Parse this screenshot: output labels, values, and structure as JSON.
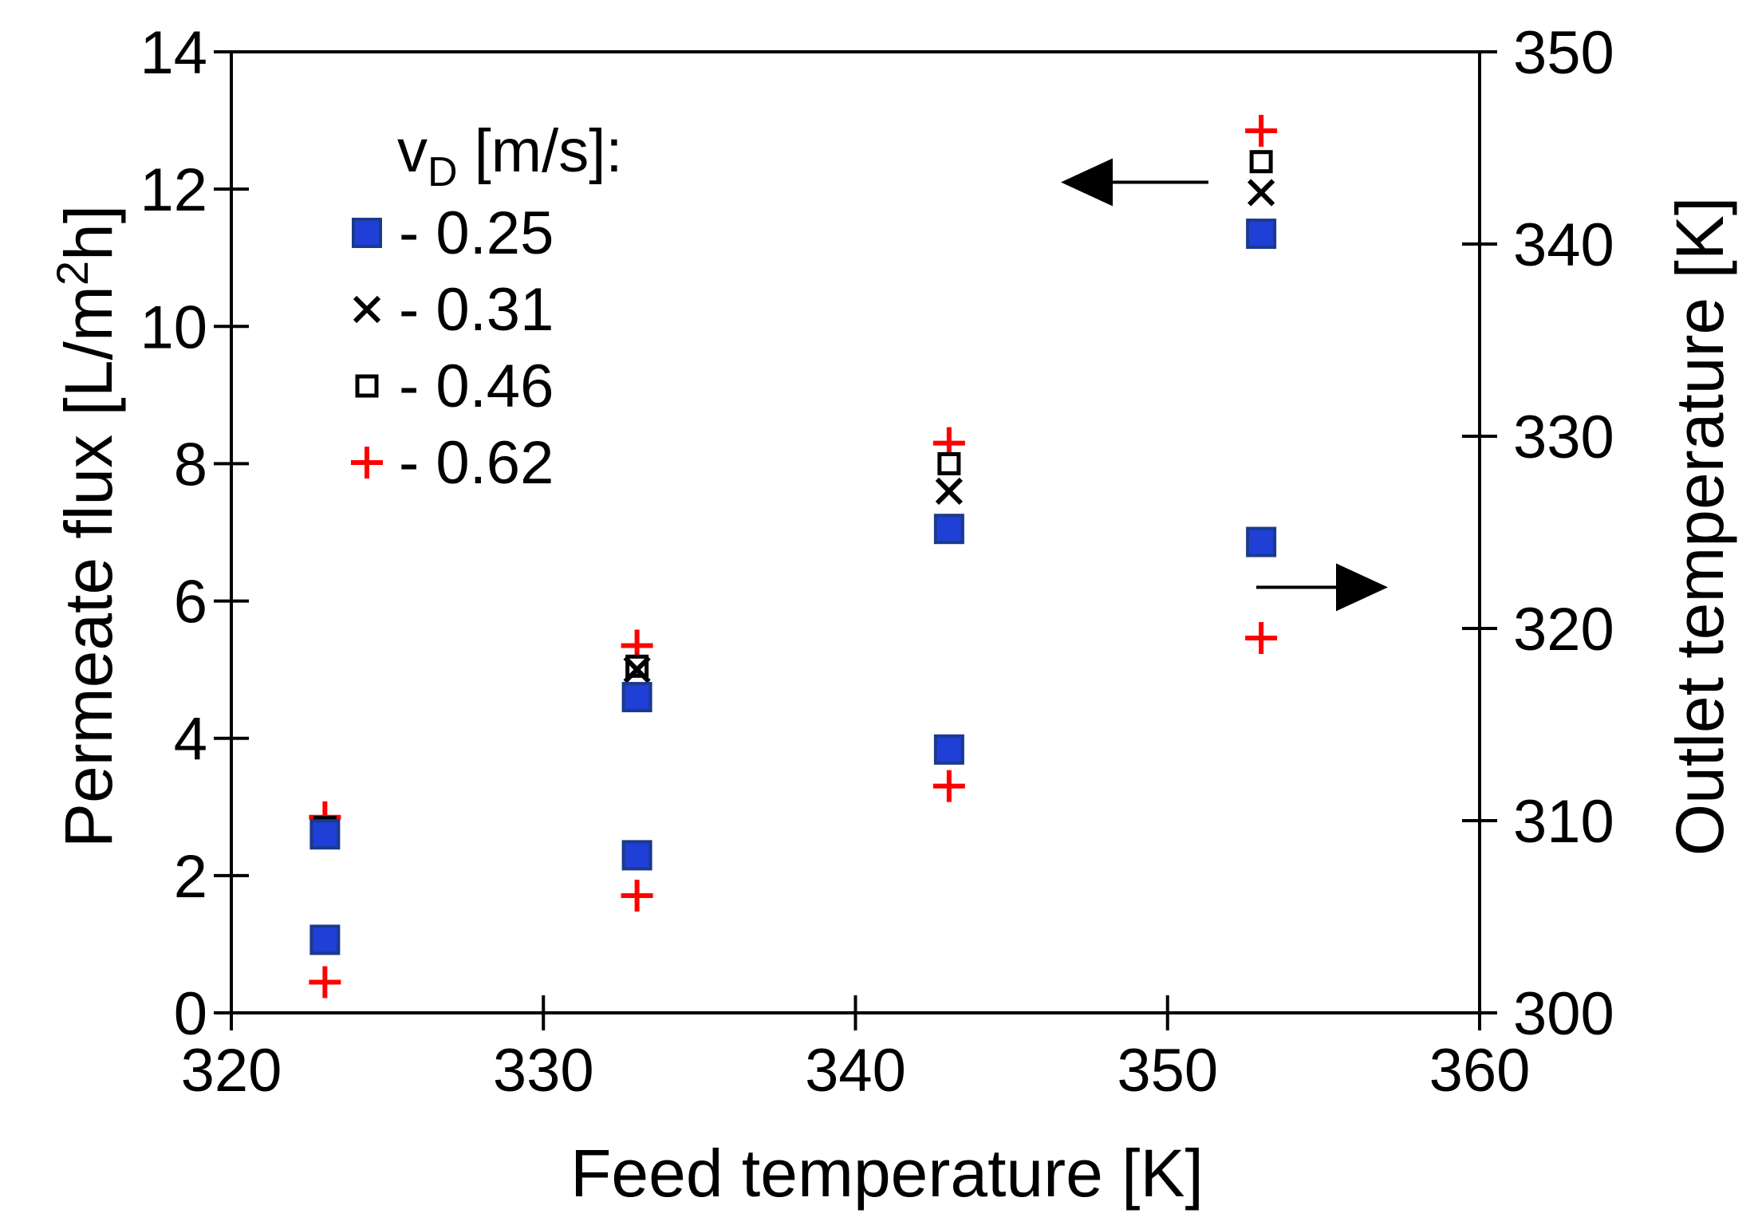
{
  "chart_data": {
    "type": "scatter",
    "xlabel": "Feed temperature [K]",
    "ylabel_left_main": "Permeate flux [L/m",
    "ylabel_left_sup": "2",
    "ylabel_left_end": "h]",
    "ylabel_right": "Outlet temperature [K]",
    "xlim": [
      320,
      360
    ],
    "ylim_left": [
      0,
      14
    ],
    "ylim_right": [
      300,
      350
    ],
    "x_ticks": [
      320,
      330,
      340,
      350,
      360
    ],
    "y_left_ticks": [
      0,
      2,
      4,
      6,
      8,
      10,
      12,
      14
    ],
    "y_right_ticks": [
      300,
      310,
      320,
      330,
      340,
      350
    ],
    "legend_title_main": "v",
    "legend_title_sub": "D",
    "legend_title_end": " [m/s]:",
    "legend_placement": "top-left",
    "grid": false,
    "series": [
      {
        "name": "- 0.25",
        "marker": "filled-square",
        "color": "#1f3fd6",
        "flux": [
          [
            323,
            2.6
          ],
          [
            333,
            4.6
          ],
          [
            343,
            7.05
          ],
          [
            353,
            11.35
          ]
        ],
        "outlet": [
          [
            323,
            303.8
          ],
          [
            333,
            308.2
          ],
          [
            343,
            313.7
          ],
          [
            353,
            324.5
          ]
        ]
      },
      {
        "name": "- 0.31",
        "marker": "x",
        "color": "#000000",
        "flux": [
          [
            323,
            2.6
          ],
          [
            333,
            5.0
          ],
          [
            343,
            7.6
          ],
          [
            353,
            11.95
          ]
        ],
        "outlet": []
      },
      {
        "name": "- 0.46",
        "marker": "open-square",
        "color": "#000000",
        "flux": [
          [
            323,
            2.7
          ],
          [
            333,
            5.05
          ],
          [
            343,
            8.0
          ],
          [
            353,
            12.4
          ]
        ],
        "outlet": []
      },
      {
        "name": "- 0.62",
        "marker": "plus",
        "color": "#ff0000",
        "flux": [
          [
            323,
            2.85
          ],
          [
            333,
            5.35
          ],
          [
            343,
            8.3
          ],
          [
            353,
            12.85
          ]
        ],
        "outlet": [
          [
            323,
            301.6
          ],
          [
            333,
            306.1
          ],
          [
            343,
            311.8
          ],
          [
            353,
            319.5
          ]
        ]
      }
    ],
    "annotations": [
      {
        "type": "arrow",
        "direction": "left",
        "points_to": "left-axis",
        "near": [
          351,
          12.1
        ]
      },
      {
        "type": "arrow",
        "direction": "right",
        "points_to": "right-axis",
        "near": [
          355,
          6.2
        ]
      }
    ]
  }
}
